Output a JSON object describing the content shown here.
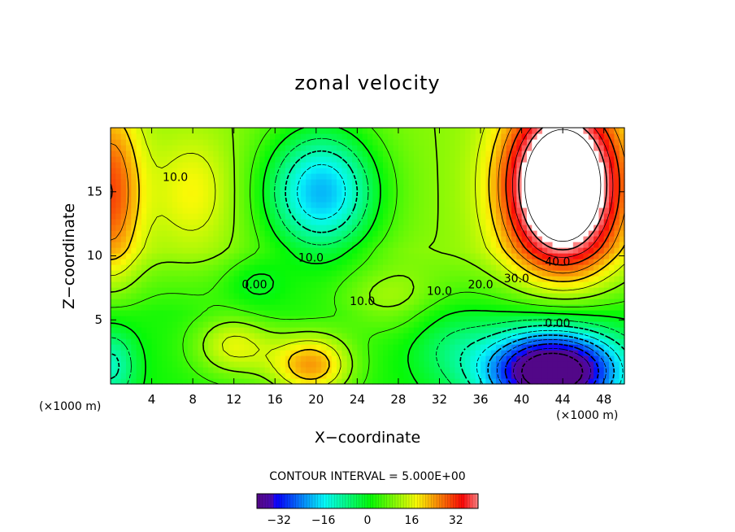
{
  "chart_data": {
    "type": "heatmap",
    "title": "zonal velocity",
    "xlabel": "X−coordinate",
    "ylabel": "Z−coordinate",
    "x_unit": "(×1000 m)",
    "y_unit": "(×1000 m)",
    "xlim": [
      0,
      50
    ],
    "ylim": [
      0,
      20
    ],
    "x_ticks": [
      4,
      8,
      12,
      16,
      20,
      24,
      28,
      32,
      36,
      40,
      44,
      48
    ],
    "y_ticks": [
      5,
      10,
      15
    ],
    "contour_interval_text": "CONTOUR INTERVAL = 5.000E+00",
    "contour_interval": 5.0,
    "colorbar": {
      "ticks": [
        -32,
        -16,
        0,
        16,
        32
      ],
      "range": [
        -40,
        40
      ],
      "colormap": "rainbow"
    },
    "contour_labels": [
      {
        "text": "10.0",
        "x": 6.3,
        "z": 16.1
      },
      {
        "text": "10.0",
        "x": 19.5,
        "z": 9.8
      },
      {
        "text": "0.00",
        "x": 14.0,
        "z": 7.7
      },
      {
        "text": "10.0",
        "x": 24.5,
        "z": 6.4
      },
      {
        "text": "10.0",
        "x": 32.0,
        "z": 7.2
      },
      {
        "text": "20.0",
        "x": 36.0,
        "z": 7.7
      },
      {
        "text": "30.0",
        "x": 39.5,
        "z": 8.2
      },
      {
        "text": "40.0",
        "x": 43.5,
        "z": 9.5
      },
      {
        "text": "0.00",
        "x": 43.5,
        "z": 4.7
      }
    ],
    "features": [
      {
        "kind": "max",
        "x": 44,
        "z": 15.5,
        "value": 45,
        "note": "white region exceeds colorbar"
      },
      {
        "kind": "min",
        "x": 43,
        "z": 1.0,
        "value": -40
      },
      {
        "kind": "min",
        "x": 20,
        "z": 15.0,
        "value": -16
      },
      {
        "kind": "max",
        "x": 19.5,
        "z": 1.5,
        "value": 28
      },
      {
        "kind": "max",
        "x": 0.5,
        "z": 15,
        "value": 30
      },
      {
        "kind": "min",
        "x": 0.5,
        "z": 1.5,
        "value": -12
      }
    ]
  }
}
